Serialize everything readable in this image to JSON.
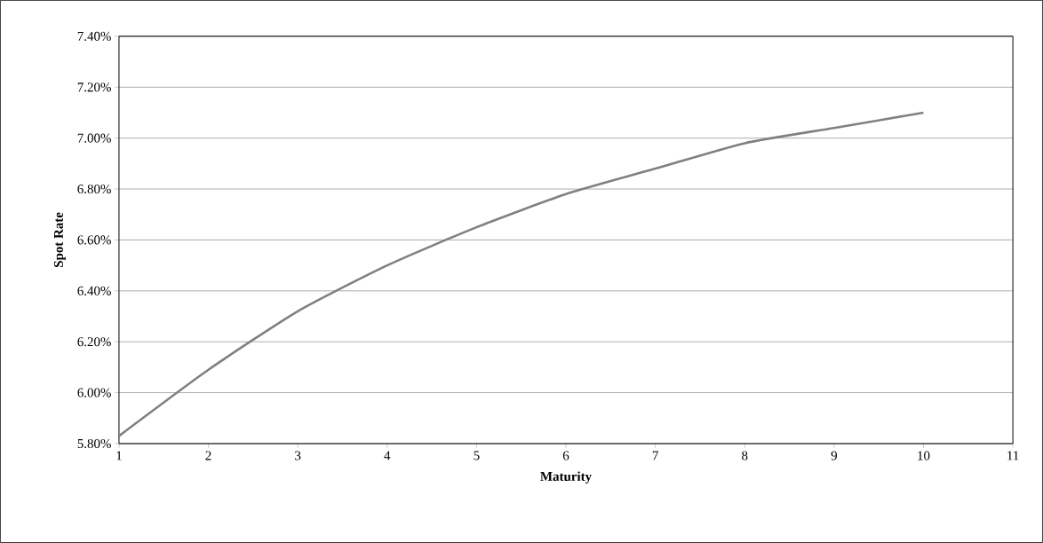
{
  "chart_data": {
    "type": "line",
    "xlabel": "Maturity",
    "ylabel": "Spot Rate",
    "x": [
      1,
      2,
      3,
      4,
      5,
      6,
      7,
      8,
      9,
      10
    ],
    "series": [
      {
        "color": "#808080",
        "values": [
          5.83,
          6.09,
          6.32,
          6.5,
          6.65,
          6.78,
          6.88,
          6.98,
          7.04,
          7.1
        ]
      }
    ],
    "xlim": [
      1,
      11
    ],
    "xticks": [
      1,
      2,
      3,
      4,
      5,
      6,
      7,
      8,
      9,
      10,
      11
    ],
    "ylim": [
      5.8,
      7.4
    ],
    "yticks": [
      {
        "value": 5.8,
        "label": "5.80%"
      },
      {
        "value": 6.0,
        "label": "6.00%"
      },
      {
        "value": 6.2,
        "label": "6.20%"
      },
      {
        "value": 6.4,
        "label": "6.40%"
      },
      {
        "value": 6.6,
        "label": "6.60%"
      },
      {
        "value": 6.8,
        "label": "6.80%"
      },
      {
        "value": 7.0,
        "label": "7.00%"
      },
      {
        "value": 7.2,
        "label": "7.20%"
      },
      {
        "value": 7.4,
        "label": "7.40%"
      }
    ],
    "grid": "y",
    "line_style": "solid"
  }
}
